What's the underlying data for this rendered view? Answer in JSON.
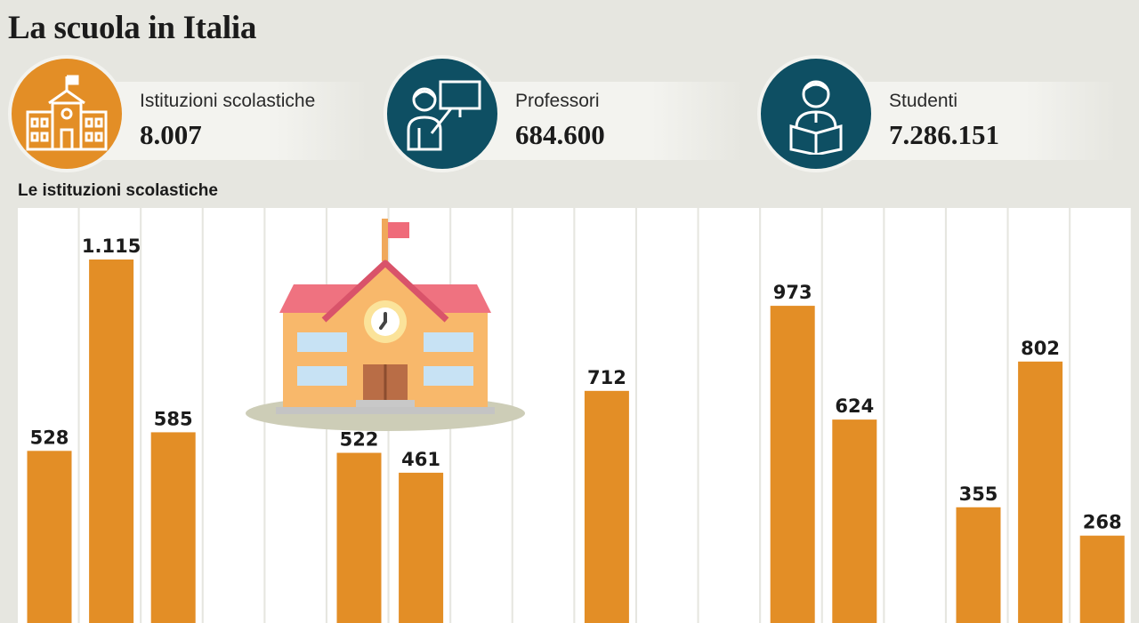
{
  "title": "La scuola in Italia",
  "stats": [
    {
      "label": "Istituzioni scolastiche",
      "value": "8.007",
      "icon": "school-building-icon",
      "color": "#e38e26"
    },
    {
      "label": "Professori",
      "value": "684.600",
      "icon": "teacher-icon",
      "color": "#0e4f63"
    },
    {
      "label": "Studenti",
      "value": "7.286.151",
      "icon": "student-reading-icon",
      "color": "#0e4f63"
    }
  ],
  "colors": {
    "bar": "#e38e26",
    "column_bg": "#ffffff",
    "background": "#e6e6e0"
  },
  "chart_data": {
    "type": "bar",
    "title": "Le istituzioni scolastiche",
    "values": [
      528,
      1115,
      585,
      null,
      null,
      522,
      461,
      null,
      null,
      712,
      null,
      null,
      973,
      624,
      null,
      355,
      802,
      268
    ],
    "labels": [
      "528",
      "1.115",
      "585",
      "",
      "",
      "522",
      "461",
      "",
      "",
      "712",
      "",
      "",
      "973",
      "624",
      "",
      "355",
      "802",
      "268"
    ]
  }
}
